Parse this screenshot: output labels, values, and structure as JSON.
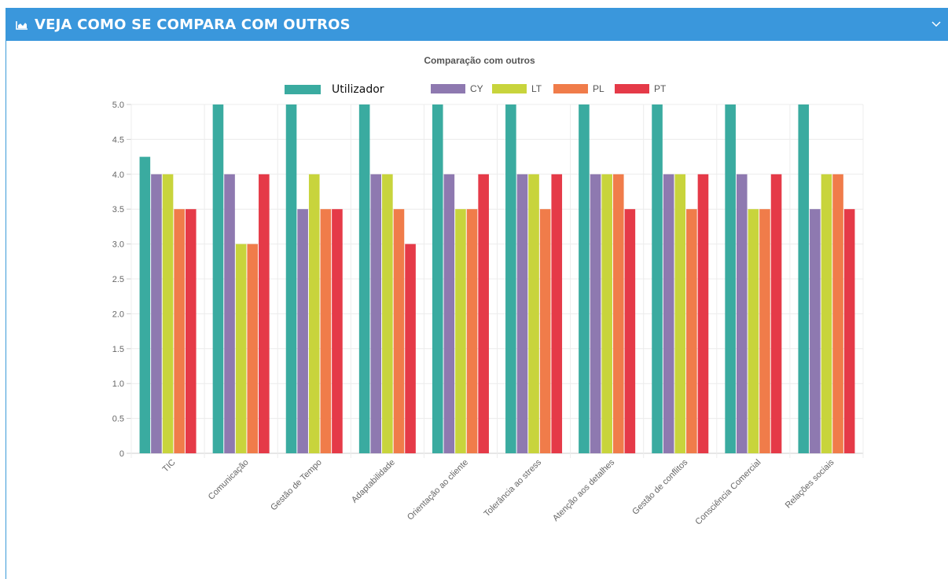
{
  "header": {
    "title": "VEJA COMO SE COMPARA COM OUTROS",
    "icon": "chart-area-icon",
    "collapse_icon": "chevron-down-icon",
    "background": "#3a97dc"
  },
  "chart_data": {
    "type": "bar",
    "title": "Comparação com outros",
    "xlabel": "",
    "ylabel": "",
    "ylim": [
      0,
      5
    ],
    "yticks": [
      "0",
      "0.5",
      "1.0",
      "1.5",
      "2.0",
      "2.5",
      "3.0",
      "3.5",
      "4.0",
      "4.5",
      "5.0"
    ],
    "grid": true,
    "legend_position": "top",
    "categories": [
      "TIC",
      "Comunicação",
      "Gestão de Tempo",
      "Adaptabilidade",
      "Orientação ao cliente",
      "Tolerância ao stress",
      "Atenção aos detalhes",
      "Gestão de conflitos",
      "Consciência Comercial",
      "Relações sociais"
    ],
    "series": [
      {
        "name": "Utilizador",
        "color": "#3aaba0",
        "values": [
          4.25,
          5.0,
          5.0,
          5.0,
          5.0,
          5.0,
          5.0,
          5.0,
          5.0,
          5.0
        ]
      },
      {
        "name": "CY",
        "color": "#8e79b0",
        "values": [
          4.0,
          4.0,
          3.5,
          4.0,
          4.0,
          4.0,
          4.0,
          4.0,
          4.0,
          3.5
        ]
      },
      {
        "name": "LT",
        "color": "#c8d43c",
        "values": [
          4.0,
          3.0,
          4.0,
          4.0,
          3.5,
          4.0,
          4.0,
          4.0,
          3.5,
          4.0
        ]
      },
      {
        "name": "PL",
        "color": "#f07c4a",
        "values": [
          3.5,
          3.0,
          3.5,
          3.5,
          3.5,
          3.5,
          4.0,
          3.5,
          3.5,
          4.0
        ]
      },
      {
        "name": "PT",
        "color": "#e53a48",
        "values": [
          3.5,
          4.0,
          3.5,
          3.0,
          4.0,
          4.0,
          3.5,
          4.0,
          4.0,
          3.5
        ]
      }
    ]
  }
}
